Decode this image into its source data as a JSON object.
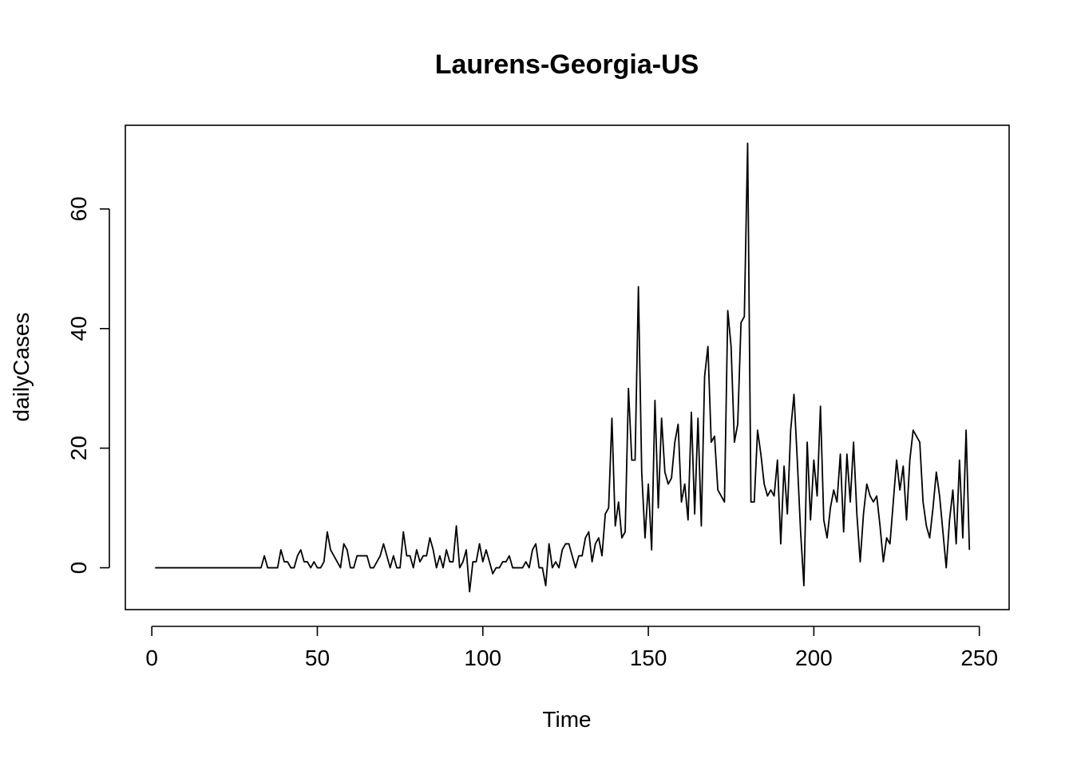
{
  "chart_data": {
    "type": "line",
    "title": "Laurens-Georgia-US",
    "xlabel": "Time",
    "ylabel": "dailyCases",
    "xlim": [
      -8,
      259
    ],
    "ylim": [
      -7,
      74
    ],
    "x_ticks": [
      0,
      50,
      100,
      150,
      200,
      250
    ],
    "y_ticks": [
      0,
      20,
      40,
      60
    ],
    "x_tick_labels": [
      "0",
      "50",
      "100",
      "150",
      "200",
      "250"
    ],
    "y_tick_labels": [
      "0",
      "20",
      "40",
      "60"
    ],
    "grid": false,
    "line_color": "#000000",
    "series": [
      {
        "x_start": 1,
        "values": [
          0,
          0,
          0,
          0,
          0,
          0,
          0,
          0,
          0,
          0,
          0,
          0,
          0,
          0,
          0,
          0,
          0,
          0,
          0,
          0,
          0,
          0,
          0,
          0,
          0,
          0,
          0,
          0,
          0,
          0,
          0,
          0,
          0,
          2,
          0,
          0,
          0,
          0,
          3,
          1,
          1,
          0,
          0,
          2,
          3,
          1,
          1,
          0,
          1,
          0,
          0,
          1,
          6,
          3,
          2,
          1,
          0,
          4,
          3,
          0,
          0,
          2,
          2,
          2,
          2,
          0,
          0,
          1,
          2,
          4,
          2,
          0,
          2,
          0,
          0,
          6,
          2,
          2,
          0,
          3,
          1,
          2,
          2,
          5,
          3,
          0,
          2,
          0,
          3,
          1,
          1,
          7,
          0,
          1,
          3,
          -4,
          1,
          1,
          4,
          1,
          3,
          1,
          -1,
          0,
          0,
          1,
          1,
          2,
          0,
          0,
          0,
          0,
          1,
          0,
          3,
          4,
          0,
          0,
          -3,
          4,
          0,
          1,
          0,
          3,
          4,
          4,
          2,
          0,
          2,
          2,
          5,
          6,
          1,
          4,
          5,
          2,
          9,
          10,
          25,
          7,
          11,
          5,
          6,
          30,
          18,
          18,
          47,
          16,
          5,
          14,
          3,
          28,
          10,
          25,
          16,
          14,
          15,
          21,
          24,
          11,
          14,
          8,
          26,
          9,
          25,
          7,
          32,
          37,
          21,
          22,
          13,
          12,
          11,
          43,
          37,
          21,
          24,
          41,
          42,
          71,
          11,
          11,
          23,
          19,
          14,
          12,
          13,
          12,
          18,
          4,
          17,
          9,
          23,
          29,
          18,
          6,
          -3,
          21,
          8,
          18,
          12,
          27,
          8,
          5,
          10,
          13,
          11,
          19,
          6,
          19,
          11,
          21,
          9,
          1,
          9,
          14,
          12,
          11,
          12,
          7,
          1,
          5,
          4,
          11,
          18,
          13,
          17,
          8,
          18,
          23,
          22,
          21,
          11,
          7,
          5,
          10,
          16,
          12,
          6,
          0,
          8,
          13,
          4,
          18,
          5,
          23,
          3
        ]
      }
    ]
  }
}
